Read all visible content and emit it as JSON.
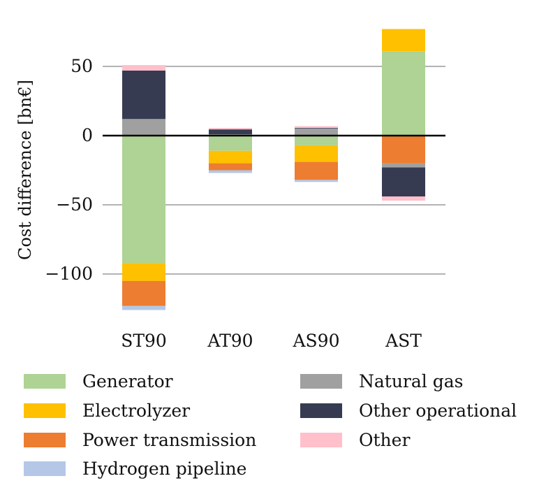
{
  "chart_data": {
    "type": "bar",
    "stacked": true,
    "title": "",
    "xlabel": "",
    "ylabel": "Cost difference [bn€]",
    "ylim": [
      -128,
      80
    ],
    "yticks": [
      50,
      0,
      -50,
      -100
    ],
    "ytick_labels": [
      "50",
      "0",
      "−50",
      "−100"
    ],
    "grid": "horizontal",
    "legend_position": "bottom",
    "categories": [
      "ST90",
      "AT90",
      "AS90",
      "AST"
    ],
    "series": [
      {
        "name": "Generator",
        "color": "#aed394",
        "values": [
          -92,
          -11,
          -7,
          61
        ]
      },
      {
        "name": "Electrolyzer",
        "color": "#ffc000",
        "values": [
          -13,
          -9,
          -12,
          16
        ]
      },
      {
        "name": "Power transmission",
        "color": "#ed7d31",
        "values": [
          -18,
          -5,
          -13,
          -20
        ]
      },
      {
        "name": "Hydrogen pipeline",
        "color": "#b4c7e7",
        "values": [
          -3,
          -2,
          -1.5,
          0
        ]
      },
      {
        "name": "Natural gas",
        "color": "#a0a0a0",
        "values": [
          12,
          1,
          5,
          -3
        ]
      },
      {
        "name": "Other operational",
        "color": "#363b52",
        "values": [
          35,
          3.5,
          0.5,
          -21
        ]
      },
      {
        "name": "Other",
        "color": "#ffc0cb",
        "values": [
          4,
          1,
          1.3,
          -3
        ]
      }
    ]
  }
}
